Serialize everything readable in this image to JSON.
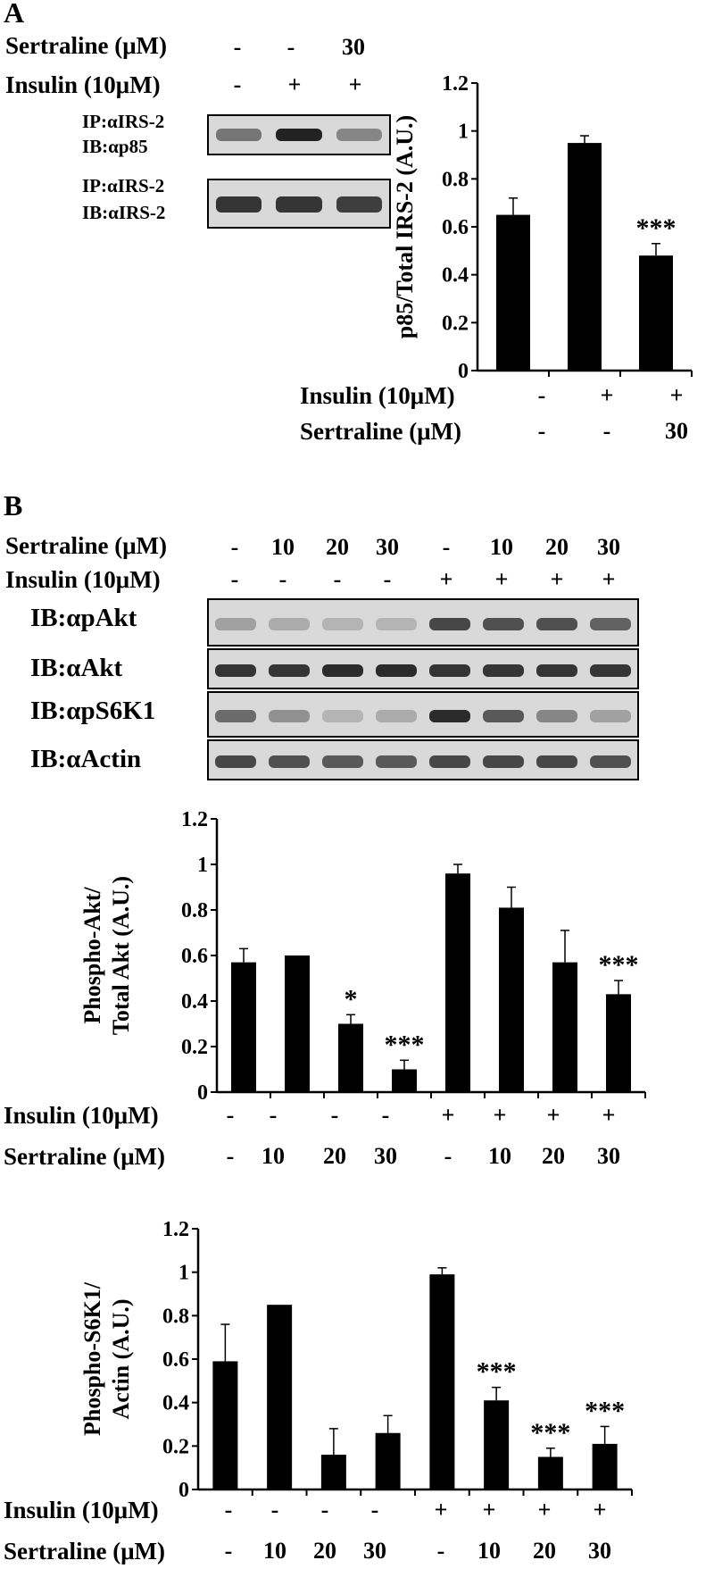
{
  "panel_a": {
    "letter": "A",
    "blot": {
      "sertraline_label": "Sertraline (μM)",
      "sertraline_values": [
        "-",
        "-",
        "30"
      ],
      "insulin_label": "Insulin (10μM)",
      "insulin_values": [
        "-",
        "+",
        "+"
      ],
      "strip1": [
        "IP:αIRS-2",
        "IB:αp85"
      ],
      "strip2": [
        "IP:αIRS-2",
        "IB:αIRS-2"
      ],
      "strip1_band_intensity": [
        0.55,
        1.0,
        0.45
      ],
      "strip2_band_intensity": [
        0.9,
        0.9,
        0.85
      ]
    },
    "chart_conditions": {
      "insulin_label": "Insulin (10μM)",
      "insulin_values": [
        "-",
        "+",
        "+"
      ],
      "sertraline_label": "Sertraline (μM)",
      "sertraline_values": [
        "-",
        "-",
        "30"
      ]
    }
  },
  "panel_b": {
    "letter": "B",
    "blot": {
      "sertraline_label": "Sertraline (μM)",
      "sertraline_values": [
        "-",
        "10",
        "20",
        "30",
        "-",
        "10",
        "20",
        "30"
      ],
      "insulin_label": "Insulin (10μM)",
      "insulin_values": [
        "-",
        "-",
        "-",
        "-",
        "+",
        "+",
        "+",
        "+"
      ],
      "strip_labels": [
        "IB:αpAkt",
        "IB:αAkt",
        "IB:αpS6K1",
        "IB:αActin"
      ],
      "band_intensity": [
        [
          0.3,
          0.25,
          0.2,
          0.2,
          0.8,
          0.75,
          0.75,
          0.65
        ],
        [
          0.9,
          0.9,
          0.95,
          0.95,
          0.9,
          0.9,
          0.9,
          0.9
        ],
        [
          0.6,
          0.4,
          0.2,
          0.25,
          0.95,
          0.7,
          0.45,
          0.3
        ],
        [
          0.8,
          0.75,
          0.7,
          0.7,
          0.8,
          0.8,
          0.8,
          0.75
        ]
      ]
    },
    "chart1_conditions": {
      "insulin_label": "Insulin (10μM)",
      "insulin_values": [
        "-",
        "-",
        "-",
        "-",
        "+",
        "+",
        "+",
        "+"
      ],
      "sertraline_label": "Sertraline (μM)",
      "sertraline_values": [
        "-",
        "10",
        "20",
        "30",
        "-",
        "10",
        "20",
        "30"
      ]
    },
    "chart2_conditions": {
      "insulin_label": "Insulin (10μM)",
      "insulin_values": [
        "-",
        "-",
        "-",
        "-",
        "+",
        "+",
        "+",
        "+"
      ],
      "sertraline_label": "Sertraline (μM)",
      "sertraline_values": [
        "-",
        "10",
        "20",
        "30",
        "-",
        "10",
        "20",
        "30"
      ]
    }
  },
  "chart_data": [
    {
      "type": "bar",
      "panel": "A",
      "categories": [
        "1",
        "2",
        "3"
      ],
      "values": [
        0.65,
        0.95,
        0.48
      ],
      "errors": [
        0.07,
        0.03,
        0.05
      ],
      "significance": [
        "",
        "",
        "***"
      ],
      "ylabel": "p85/Total IRS-2 (A.U.)",
      "ylim": [
        0,
        1.2
      ],
      "yticks": [
        "0",
        "0.2",
        "0.4",
        "0.6",
        "0.8",
        "1",
        "1.2"
      ],
      "bar_color": "#000000"
    },
    {
      "type": "bar",
      "panel": "B",
      "categories": [
        "1",
        "2",
        "3",
        "4",
        "5",
        "6",
        "7",
        "8"
      ],
      "values": [
        0.57,
        0.6,
        0.3,
        0.1,
        0.96,
        0.81,
        0.57,
        0.43
      ],
      "errors": [
        0.06,
        0.0,
        0.04,
        0.04,
        0.04,
        0.09,
        0.14,
        0.06
      ],
      "significance": [
        "",
        "",
        "*",
        "***",
        "",
        "",
        "",
        "***"
      ],
      "ylabel": "Phospho-Akt/ Total Akt (A.U.)",
      "ylabel_lines": [
        "Phospho-Akt/",
        "Total Akt (A.U.)"
      ],
      "ylim": [
        0,
        1.2
      ],
      "yticks": [
        "0",
        "0.2",
        "0.4",
        "0.6",
        "0.8",
        "1",
        "1.2"
      ],
      "bar_color": "#000000"
    },
    {
      "type": "bar",
      "panel": "B",
      "categories": [
        "1",
        "2",
        "3",
        "4",
        "5",
        "6",
        "7",
        "8"
      ],
      "values": [
        0.59,
        0.85,
        0.16,
        0.26,
        0.99,
        0.41,
        0.15,
        0.21
      ],
      "errors": [
        0.17,
        0.0,
        0.12,
        0.08,
        0.03,
        0.06,
        0.04,
        0.08
      ],
      "significance": [
        "",
        "",
        "",
        "",
        "",
        "***",
        "***",
        "***"
      ],
      "ylabel": "Phospho-S6K1/ Actin (A.U.)",
      "ylabel_lines": [
        "Phospho-S6K1/",
        "Actin (A.U.)"
      ],
      "ylim": [
        0,
        1.2
      ],
      "yticks": [
        "0",
        "0.2",
        "0.4",
        "0.6",
        "0.8",
        "1",
        "1.2"
      ],
      "bar_color": "#000000"
    }
  ]
}
